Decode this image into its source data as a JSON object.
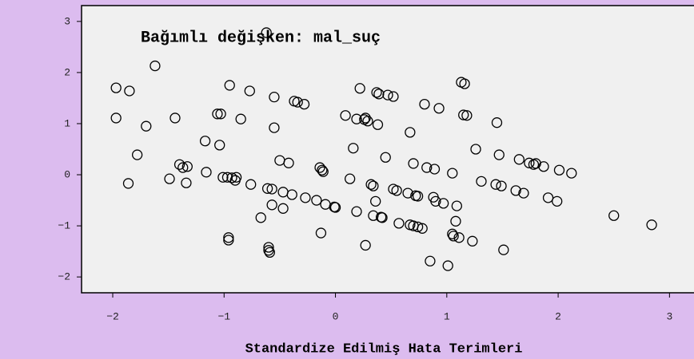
{
  "chart_data": {
    "type": "scatter",
    "title": "Bağımlı değişken: mal_suç",
    "x_label": "Standardize Edilmiş Hata Terimleri",
    "marker": "open-circle",
    "color": "#000000",
    "xlim": [
      -2.28,
      3.22
    ],
    "ylim": [
      -2.31,
      3.31
    ],
    "xticks": [
      {
        "value": -2,
        "label": "−2"
      },
      {
        "value": -1,
        "label": "−1"
      },
      0,
      1,
      2,
      3
    ],
    "yticks": [
      {
        "value": -2,
        "label": "−2"
      },
      {
        "value": -1,
        "label": "−1"
      },
      0,
      1,
      2,
      3
    ],
    "x": [
      -1.97,
      -1.85,
      -1.97,
      -1.62,
      -1.7,
      -1.78,
      -1.86,
      -1.49,
      -1.44,
      -1.4,
      -1.37,
      -1.33,
      -1.34,
      -1.17,
      -1.16,
      -1.04,
      -1.06,
      -1.03,
      -0.95,
      -0.85,
      -1.01,
      -0.97,
      -0.93,
      -0.9,
      -0.89,
      -0.96,
      -0.96,
      -0.77,
      -0.76,
      -0.67,
      -0.62,
      -0.61,
      -0.57,
      -0.55,
      -0.55,
      -0.57,
      -0.47,
      -0.6,
      -0.6,
      -0.59,
      -0.5,
      -0.42,
      -0.47,
      -0.39,
      -0.37,
      -0.34,
      -0.28,
      -0.27,
      -0.17,
      -0.14,
      -0.12,
      -0.11,
      -0.13,
      -0.09,
      -0.01,
      0.0,
      0.09,
      0.19,
      0.26,
      0.27,
      0.29,
      0.38,
      0.22,
      0.16,
      0.13,
      0.19,
      0.27,
      0.32,
      0.34,
      0.36,
      0.34,
      0.41,
      0.42,
      0.37,
      0.39,
      0.47,
      0.52,
      0.45,
      0.52,
      0.55,
      0.57,
      0.65,
      0.72,
      0.74,
      0.67,
      0.7,
      0.74,
      0.78,
      0.67,
      0.7,
      0.8,
      0.82,
      0.89,
      0.88,
      0.9,
      0.93,
      0.97,
      0.85,
      1.01,
      1.05,
      1.08,
      1.09,
      1.05,
      1.06,
      1.11,
      1.13,
      1.16,
      1.15,
      1.18,
      1.23,
      1.26,
      1.31,
      1.44,
      1.49,
      1.45,
      1.47,
      1.51,
      1.62,
      1.69,
      1.65,
      1.74,
      1.78,
      1.8,
      1.87,
      1.91,
      1.99,
      2.01,
      2.12,
      2.5,
      2.84
    ],
    "y": [
      1.7,
      1.64,
      1.11,
      2.13,
      0.95,
      0.39,
      -0.17,
      -0.08,
      1.11,
      0.2,
      0.14,
      0.16,
      -0.16,
      0.66,
      0.05,
      0.58,
      1.19,
      1.19,
      1.75,
      1.09,
      -0.05,
      -0.05,
      -0.06,
      -0.11,
      -0.05,
      -1.23,
      -1.28,
      1.64,
      -0.19,
      -0.84,
      2.78,
      -0.27,
      -0.28,
      1.52,
      0.92,
      -0.59,
      -0.66,
      -1.42,
      -1.48,
      -1.52,
      0.28,
      0.23,
      -0.34,
      -0.39,
      1.44,
      1.42,
      1.38,
      -0.45,
      -0.5,
      0.14,
      0.09,
      0.06,
      -1.14,
      -0.58,
      -0.63,
      -0.64,
      1.16,
      1.09,
      1.08,
      1.11,
      1.05,
      0.98,
      1.69,
      0.52,
      -0.08,
      -0.72,
      -1.38,
      -0.19,
      -0.22,
      -0.52,
      -0.8,
      -0.83,
      -0.84,
      1.61,
      1.58,
      1.56,
      1.53,
      0.34,
      -0.28,
      -0.31,
      -0.95,
      -0.36,
      -0.41,
      -0.42,
      -0.98,
      -1.0,
      -1.02,
      -1.05,
      0.83,
      0.22,
      1.38,
      0.14,
      0.11,
      -0.44,
      -0.52,
      1.3,
      -0.56,
      -1.69,
      -1.78,
      0.03,
      -0.91,
      -0.61,
      -1.16,
      -1.2,
      -1.23,
      1.81,
      1.78,
      1.17,
      1.16,
      -1.3,
      0.5,
      -0.13,
      -0.19,
      -0.22,
      1.02,
      0.39,
      -1.47,
      -0.31,
      -0.36,
      0.3,
      0.23,
      0.2,
      0.22,
      0.16,
      -0.45,
      -0.52,
      0.09,
      0.03,
      -0.8,
      -0.98
    ]
  }
}
